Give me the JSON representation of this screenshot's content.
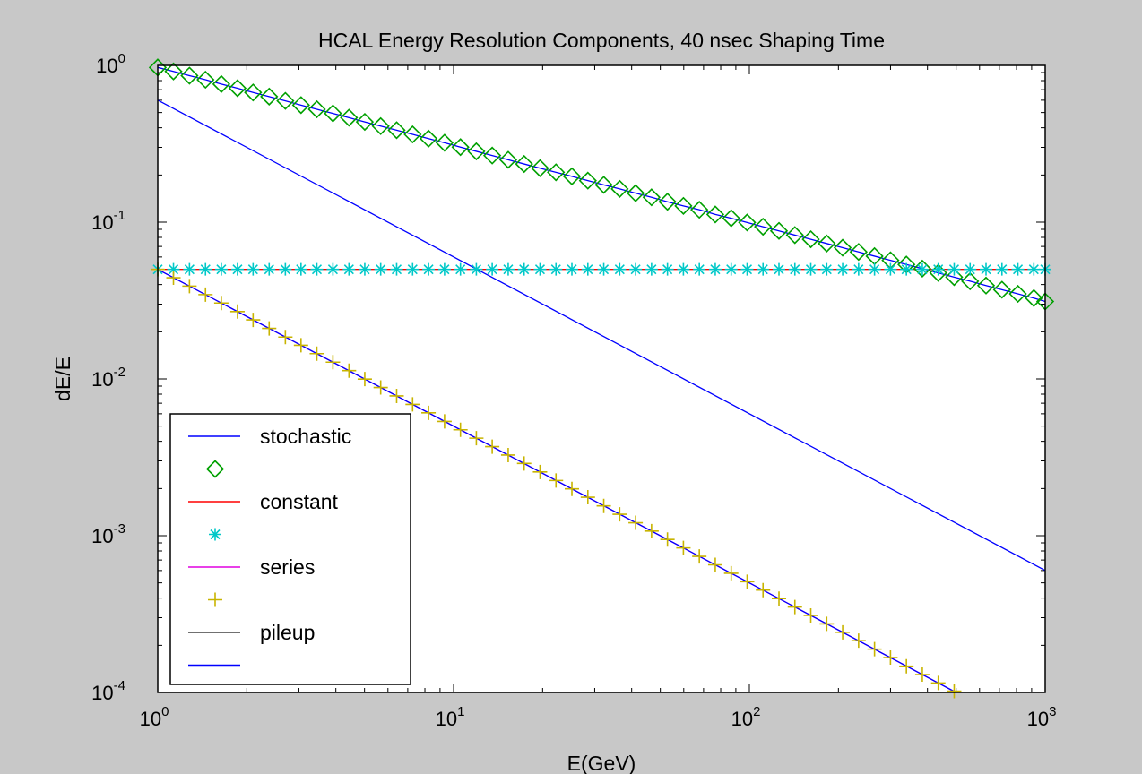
{
  "chart_data": {
    "type": "line",
    "title": "HCAL Energy Resolution Components, 40 nsec Shaping Time",
    "xlabel": "E(GeV)",
    "ylabel": "dE/E",
    "xscale": "log",
    "yscale": "log",
    "xlim": [
      1,
      1000
    ],
    "ylim": [
      0.0001,
      1
    ],
    "grid": false,
    "legend_position": "bottom-left",
    "x_ticks": [
      {
        "value": 1,
        "base": "10",
        "exp": "0"
      },
      {
        "value": 10,
        "base": "10",
        "exp": "1"
      },
      {
        "value": 100,
        "base": "10",
        "exp": "2"
      },
      {
        "value": 1000,
        "base": "10",
        "exp": "3"
      }
    ],
    "y_ticks": [
      {
        "value": 1,
        "base": "10",
        "exp": "0"
      },
      {
        "value": 0.1,
        "base": "10",
        "exp": "-1"
      },
      {
        "value": 0.01,
        "base": "10",
        "exp": "-2"
      },
      {
        "value": 0.001,
        "base": "10",
        "exp": "-3"
      },
      {
        "value": 0.0001,
        "base": "10",
        "exp": "-4"
      }
    ],
    "series": [
      {
        "name": "stochastic",
        "color": "#0000ff",
        "style": "line",
        "x": [
          1,
          1000
        ],
        "y": [
          0.6,
          0.0006
        ]
      },
      {
        "name": "",
        "color": "#00a000",
        "style": "diamond",
        "x": [
          1,
          1.13,
          1.28,
          1.45,
          1.64,
          1.86,
          2.1,
          2.38,
          2.7,
          3.05,
          3.45,
          3.91,
          4.43,
          5.01,
          5.67,
          6.42,
          7.27,
          8.23,
          9.32,
          10.55,
          11.94,
          13.51,
          15.3,
          17.32,
          19.6,
          22.19,
          25.12,
          28.44,
          32.19,
          36.44,
          41.25,
          46.7,
          52.86,
          59.84,
          67.74,
          76.68,
          86.8,
          98.26,
          111.2,
          125.9,
          142.5,
          161.3,
          182.6,
          206.7,
          234,
          264.9,
          299.9,
          339.5,
          384.3,
          435,
          492.4,
          557.4,
          631,
          714.3,
          808.6,
          915.3,
          1000
        ],
        "y": [
          0.97,
          0.915,
          0.86,
          0.81,
          0.76,
          0.715,
          0.672,
          0.632,
          0.594,
          0.558,
          0.525,
          0.494,
          0.464,
          0.436,
          0.41,
          0.386,
          0.363,
          0.341,
          0.321,
          0.301,
          0.283,
          0.266,
          0.25,
          0.235,
          0.221,
          0.208,
          0.196,
          0.184,
          0.173,
          0.163,
          0.153,
          0.144,
          0.135,
          0.127,
          0.12,
          0.112,
          0.106,
          0.0995,
          0.0935,
          0.088,
          0.0827,
          0.0778,
          0.0731,
          0.0687,
          0.0646,
          0.0607,
          0.0571,
          0.0537,
          0.0505,
          0.0475,
          0.0446,
          0.042,
          0.0394,
          0.0371,
          0.0349,
          0.0328,
          0.0312
        ]
      },
      {
        "name": "constant",
        "color": "#ff0000",
        "style": "line",
        "x": [
          1,
          1000
        ],
        "y": [
          0.05,
          0.05
        ]
      },
      {
        "name": "",
        "color": "#00c8c8",
        "style": "asterisk",
        "x": [
          1,
          1.13,
          1.28,
          1.45,
          1.64,
          1.86,
          2.1,
          2.38,
          2.7,
          3.05,
          3.45,
          3.91,
          4.43,
          5.01,
          5.67,
          6.42,
          7.27,
          8.23,
          9.32,
          10.55,
          11.94,
          13.51,
          15.3,
          17.32,
          19.6,
          22.19,
          25.12,
          28.44,
          32.19,
          36.44,
          41.25,
          46.7,
          52.86,
          59.84,
          67.74,
          76.68,
          86.8,
          98.26,
          111.2,
          125.9,
          142.5,
          161.3,
          182.6,
          206.7,
          234,
          264.9,
          299.9,
          339.5,
          384.3,
          435,
          492.4,
          557.4,
          631,
          714.3,
          808.6,
          915.3,
          1000
        ],
        "y": [
          0.05,
          0.05,
          0.05,
          0.05,
          0.05,
          0.05,
          0.05,
          0.05,
          0.05,
          0.05,
          0.05,
          0.05,
          0.05,
          0.05,
          0.05,
          0.05,
          0.05,
          0.05,
          0.05,
          0.05,
          0.05,
          0.05,
          0.05,
          0.05,
          0.05,
          0.05,
          0.05,
          0.05,
          0.05,
          0.05,
          0.05,
          0.05,
          0.05,
          0.05,
          0.05,
          0.05,
          0.05,
          0.05,
          0.05,
          0.05,
          0.05,
          0.05,
          0.05,
          0.05,
          0.05,
          0.05,
          0.05,
          0.05,
          0.05,
          0.05,
          0.05,
          0.05,
          0.05,
          0.05,
          0.05,
          0.05,
          0.05
        ]
      },
      {
        "name": "series",
        "color": "#e000e0",
        "style": "line",
        "x": [
          1,
          500
        ],
        "y": [
          0.05,
          0.0001
        ]
      },
      {
        "name": "",
        "color": "#c8b400",
        "style": "plus",
        "x": [
          1,
          1.13,
          1.28,
          1.45,
          1.64,
          1.86,
          2.1,
          2.38,
          2.7,
          3.05,
          3.45,
          3.91,
          4.43,
          5.01,
          5.67,
          6.42,
          7.27,
          8.23,
          9.32,
          10.55,
          11.94,
          13.51,
          15.3,
          17.32,
          19.6,
          22.19,
          25.12,
          28.44,
          32.19,
          36.44,
          41.25,
          46.7,
          52.86,
          59.84,
          67.74,
          76.68,
          86.8,
          98.26,
          111.2,
          125.9,
          142.5,
          161.3,
          182.6,
          206.7,
          234,
          264.9,
          299.9,
          339.5,
          384.3,
          435,
          492.4
        ],
        "y": [
          0.05,
          0.0442,
          0.0391,
          0.0345,
          0.0305,
          0.0269,
          0.0238,
          0.021,
          0.0185,
          0.0164,
          0.0145,
          0.0128,
          0.0113,
          0.00998,
          0.00882,
          0.00779,
          0.00688,
          0.00608,
          0.00536,
          0.00474,
          0.00419,
          0.0037,
          0.00327,
          0.00289,
          0.00255,
          0.00225,
          0.00199,
          0.00176,
          0.00155,
          0.00137,
          0.00121,
          0.00107,
          0.000946,
          0.000836,
          0.000738,
          0.000652,
          0.000576,
          0.000509,
          0.00045,
          0.000397,
          0.000351,
          0.00031,
          0.000274,
          0.000242,
          0.000214,
          0.000189,
          0.000167,
          0.000147,
          0.00013,
          0.000115,
          0.000102
        ]
      },
      {
        "name": "pileup",
        "color": "#404040",
        "style": "line",
        "x": [],
        "y": []
      },
      {
        "name": "",
        "color": "#0000ff",
        "style": "line",
        "x": [
          1,
          500
        ],
        "y": [
          0.05,
          0.0001
        ]
      }
    ]
  }
}
